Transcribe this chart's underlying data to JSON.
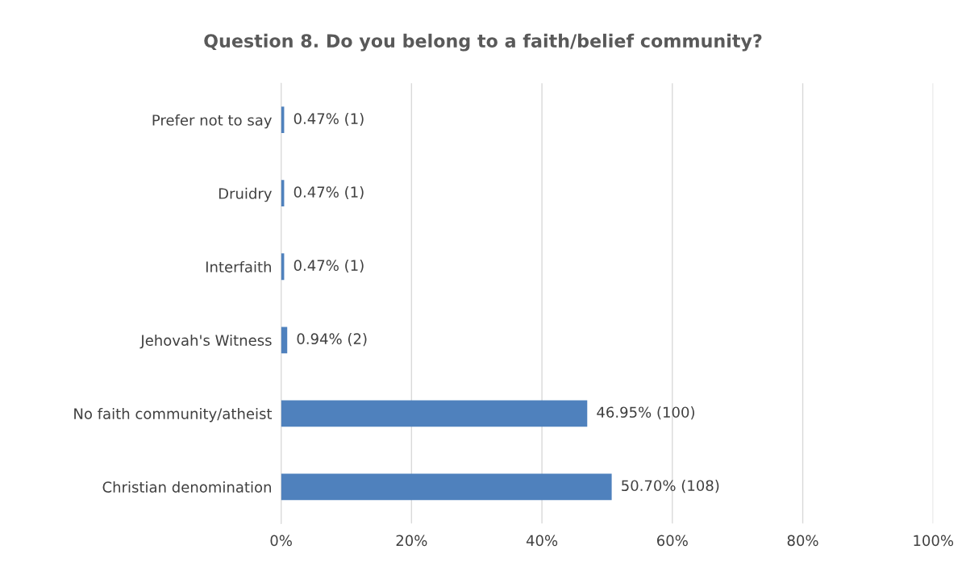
{
  "chart_data": {
    "type": "bar",
    "orientation": "horizontal",
    "title": "Question 8. Do you belong to a faith/belief community?",
    "categories": [
      "Prefer not to say",
      "Druidry",
      "Interfaith",
      "Jehovah's Witness",
      "No faith community/atheist",
      "Christian denomination"
    ],
    "values": [
      0.47,
      0.47,
      0.47,
      0.94,
      46.95,
      50.7
    ],
    "value_labels": [
      "0.47% (1)",
      "0.47% (1)",
      "0.47% (1)",
      "0.94% (2)",
      "46.95% (100)",
      "50.70% (108)"
    ],
    "color": "#4f81bd",
    "xlim": [
      0,
      100
    ],
    "xticks": [
      {
        "value": 0,
        "label": "0%"
      },
      {
        "value": 20,
        "label": "20%"
      },
      {
        "value": 40,
        "label": "40%"
      },
      {
        "value": 60,
        "label": "60%"
      },
      {
        "value": 80,
        "label": "80%"
      },
      {
        "value": 100,
        "label": "100%"
      }
    ],
    "grid": "x",
    "legend": false
  }
}
